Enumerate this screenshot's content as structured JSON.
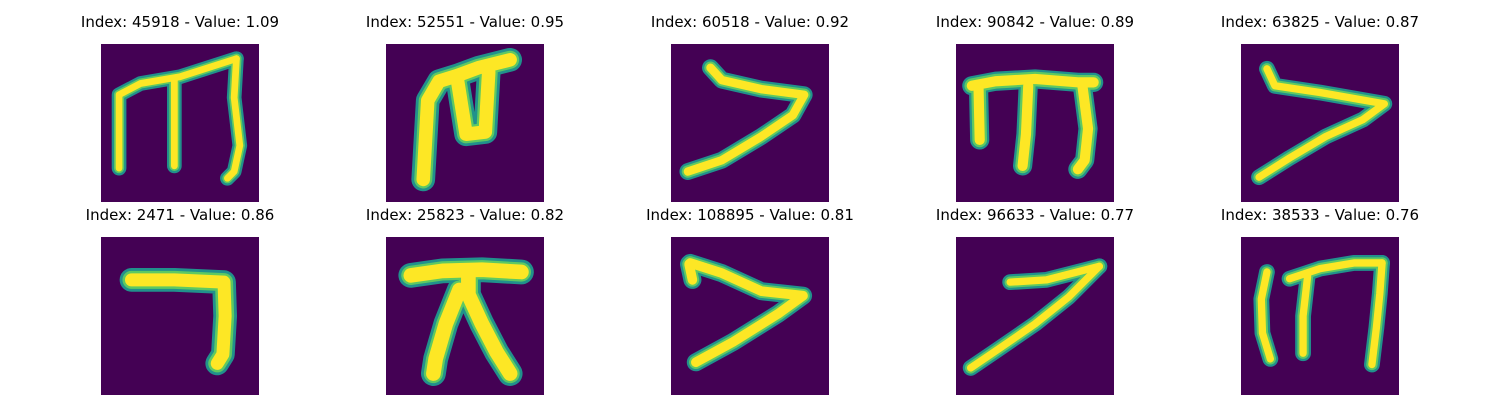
{
  "colors": {
    "background": "#440154",
    "stroke_edge": "#21918c",
    "stroke_mid": "#5ec962",
    "stroke_core": "#fde725"
  },
  "title_prefix_index": "Index",
  "title_prefix_value": "Value",
  "tiles": [
    {
      "index": "45918",
      "value": "1.09",
      "title": "Index: 45918 - Value: 1.09",
      "glyph": "m-shape"
    },
    {
      "index": "52551",
      "value": "0.95",
      "title": "Index: 52551 - Value: 0.95",
      "glyph": "hook-shape"
    },
    {
      "index": "60518",
      "value": "0.92",
      "title": "Index: 60518 - Value: 0.92",
      "glyph": "angle-shape"
    },
    {
      "index": "90842",
      "value": "0.89",
      "title": "Index: 90842 - Value: 0.89",
      "glyph": "m-shape"
    },
    {
      "index": "63825",
      "value": "0.87",
      "title": "Index: 63825 - Value: 0.87",
      "glyph": "angle-shape"
    },
    {
      "index": "2471",
      "value": "0.86",
      "title": "Index: 2471 - Value: 0.86",
      "glyph": "bracket-shape"
    },
    {
      "index": "25823",
      "value": "0.82",
      "title": "Index: 25823 - Value: 0.82",
      "glyph": "tent-shape"
    },
    {
      "index": "108895",
      "value": "0.81",
      "title": "Index: 108895 - Value: 0.81",
      "glyph": "angle-shape"
    },
    {
      "index": "96633",
      "value": "0.77",
      "title": "Index: 96633 - Value: 0.77",
      "glyph": "slash-shape"
    },
    {
      "index": "38533",
      "value": "0.76",
      "title": "Index: 38533 - Value: 0.76",
      "glyph": "m-shape"
    }
  ]
}
